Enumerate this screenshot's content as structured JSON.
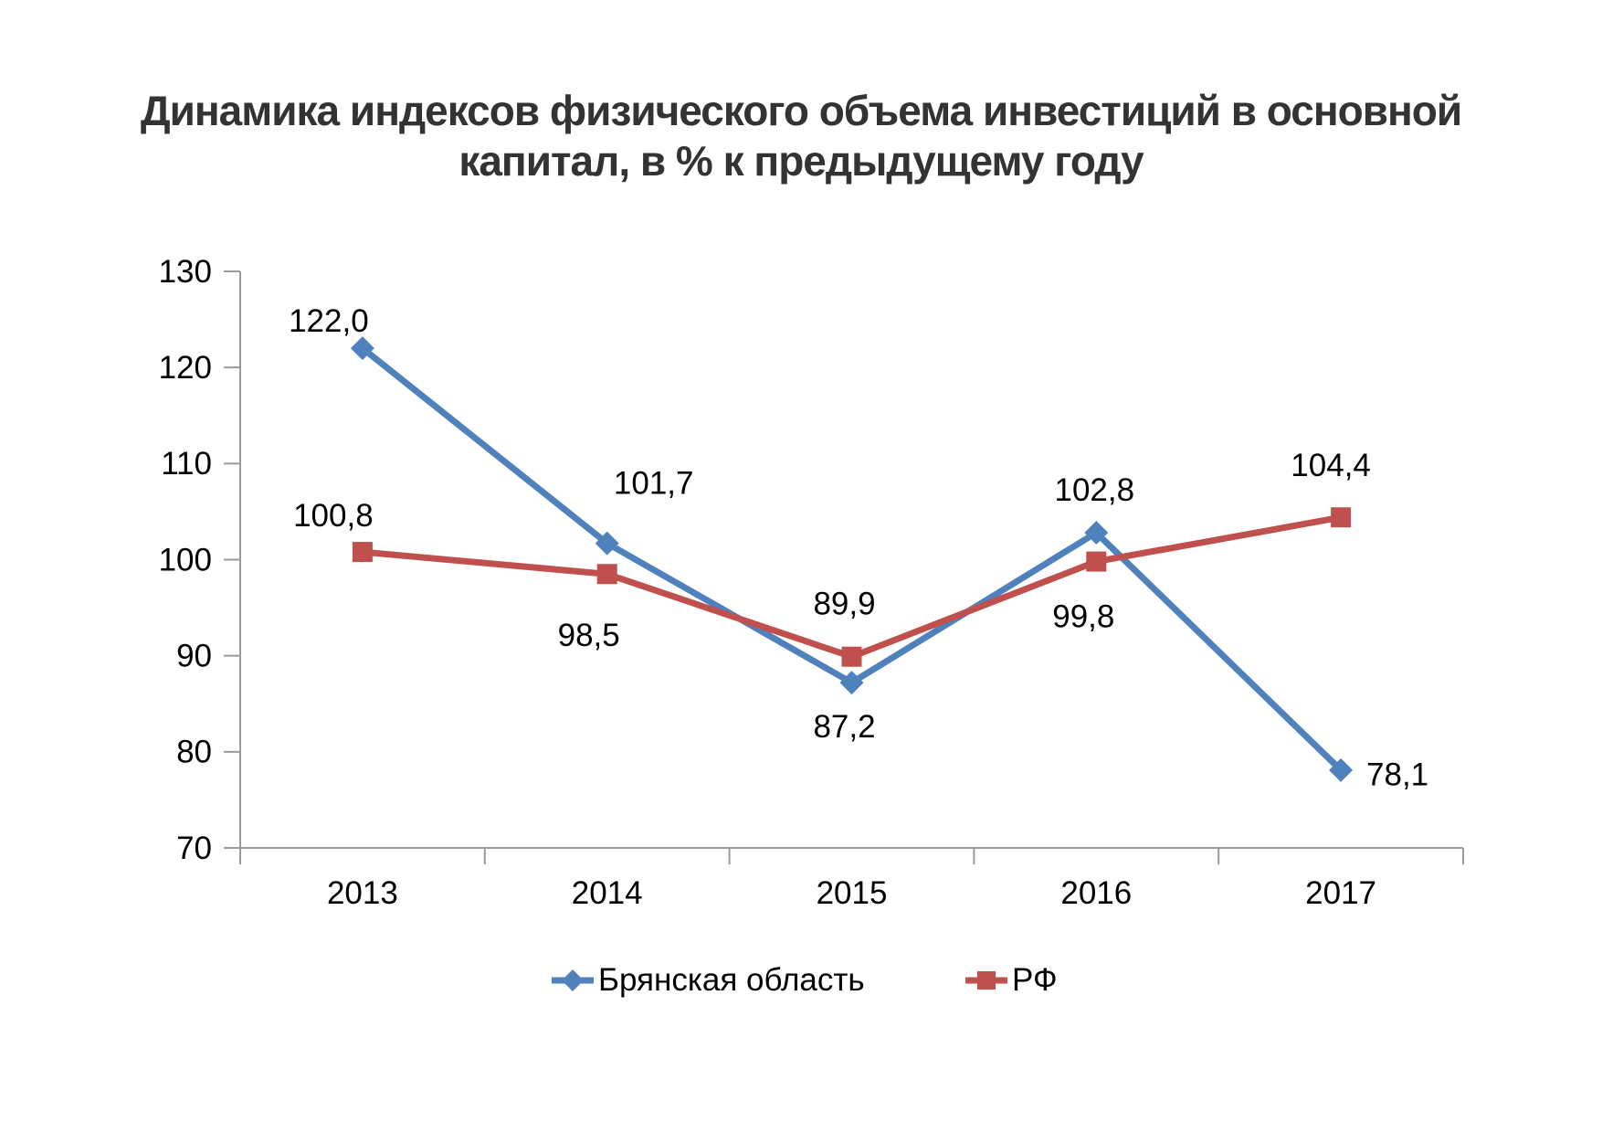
{
  "title": "Динамика индексов физического объема инвестиций в основной капитал, в % к предыдущему году",
  "title_lines": [
    "Динамика индексов физического объема инвестиций в основной",
    "капитал, в % к предыдущему году"
  ],
  "chart_data": {
    "type": "line",
    "categories": [
      "2013",
      "2014",
      "2015",
      "2016",
      "2017"
    ],
    "series": [
      {
        "name": "Брянская область",
        "color": "#4F81BD",
        "marker": "diamond",
        "values": [
          122.0,
          101.7,
          87.2,
          102.8,
          78.1
        ],
        "labels": [
          "122,0",
          "101,7",
          "87,2",
          "102,8",
          "78,1"
        ],
        "label_offsets": [
          [
            -37,
            -30
          ],
          [
            51,
            -66
          ],
          [
            -8,
            48
          ],
          [
            -2,
            -47
          ],
          [
            62,
            5
          ]
        ]
      },
      {
        "name": "РФ",
        "color": "#C0504D",
        "marker": "square",
        "values": [
          100.8,
          98.5,
          89.9,
          99.8,
          104.4
        ],
        "labels": [
          "100,8",
          "98,5",
          "89,9",
          "99,8",
          "104,4"
        ],
        "label_offsets": [
          [
            -32,
            -40
          ],
          [
            -20,
            67
          ],
          [
            -8,
            -58
          ],
          [
            -14,
            60
          ],
          [
            -11,
            -57
          ]
        ]
      }
    ],
    "y_axis": {
      "min": 70,
      "max": 130,
      "step": 10,
      "tick_labels": [
        "70",
        "80",
        "90",
        "100",
        "110",
        "120",
        "130"
      ]
    },
    "x_axis": {
      "tick_labels": [
        "2013",
        "2014",
        "2015",
        "2016",
        "2017"
      ]
    },
    "grid": false,
    "legend_position": "bottom",
    "decimal_separator": ","
  },
  "colors": {
    "axis": "#9B9B9B",
    "text": "#000000",
    "title": "#333333",
    "series1": "#4F81BD",
    "series2": "#C0504D",
    "background": "#FFFFFF"
  }
}
